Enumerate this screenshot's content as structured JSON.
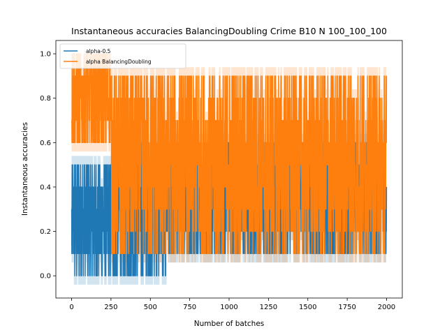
{
  "chart_data": {
    "type": "line",
    "title": "Instantaneous accuracies BalancingDoubling Crime B10 N 100_100_100",
    "xlabel": "Number of batches",
    "ylabel": "Instantaneous accuracies",
    "xlim": [
      -100,
      2100
    ],
    "ylim": [
      -0.1,
      1.06
    ],
    "xticks": [
      0,
      250,
      500,
      750,
      1000,
      1250,
      1500,
      1750,
      2000
    ],
    "xtick_labels": [
      "0",
      "250",
      "500",
      "750",
      "1000",
      "1250",
      "1500",
      "1750",
      "2000"
    ],
    "yticks": [
      0.0,
      0.2,
      0.4,
      0.6,
      0.8,
      1.0
    ],
    "ytick_labels": [
      "0.0",
      "0.2",
      "0.4",
      "0.6",
      "0.8",
      "1.0"
    ],
    "grid": false,
    "legend_position": "top-left",
    "n_batches": 2000,
    "series": [
      {
        "name": "alpha-0.5",
        "color": "#1f77b4",
        "phases": [
          {
            "from": 0,
            "to": 260,
            "values": [
              0.0,
              0.1,
              0.2,
              0.3,
              0.4,
              0.5
            ]
          },
          {
            "from": 260,
            "to": 600,
            "values": [
              0.0,
              0.1,
              0.2,
              0.3,
              0.4,
              0.5,
              0.6
            ]
          },
          {
            "from": 600,
            "to": 2000,
            "values": [
              0.1,
              0.2,
              0.3,
              0.4,
              0.5,
              0.6
            ]
          }
        ]
      },
      {
        "name": "alpha BalancingDoubling",
        "color": "#ff7f0e",
        "phases": [
          {
            "from": 0,
            "to": 250,
            "values": [
              0.6,
              0.7,
              0.8,
              0.9,
              1.0
            ]
          },
          {
            "from": 250,
            "to": 2000,
            "values": [
              0.1,
              0.2,
              0.3,
              0.4,
              0.5,
              0.6,
              0.7,
              0.8,
              0.9
            ]
          }
        ]
      }
    ]
  }
}
